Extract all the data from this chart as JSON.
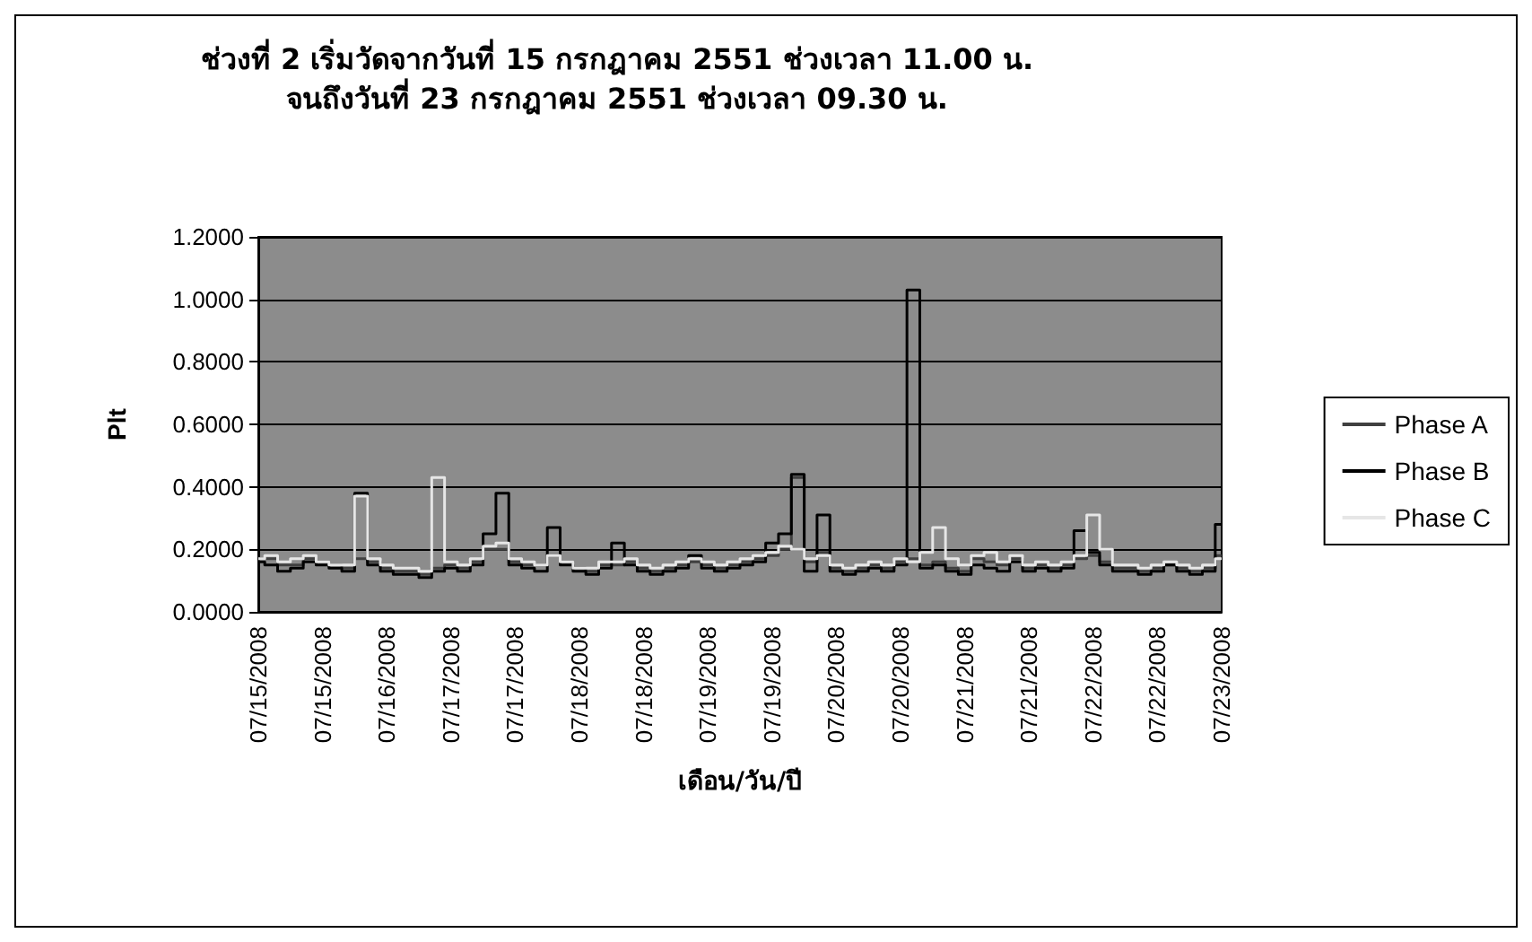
{
  "chart_data": {
    "type": "step",
    "title": "ช่วงที่ 2 เริ่มวัดจากวันที่ 15 กรกฎาคม 2551 ช่วงเวลา 11.00 น.\nจนถึงวันที่ 23 กรกฎาคม 2551 ช่วงเวลา 09.30 น.",
    "xlabel": "เดือน/วัน/ปี",
    "ylabel": "Plt",
    "categories": [
      "07/15/2008",
      null,
      null,
      null,
      null,
      "07/15/2008",
      null,
      null,
      null,
      null,
      "07/16/2008",
      null,
      null,
      null,
      null,
      "07/17/2008",
      null,
      null,
      null,
      null,
      "07/17/2008",
      null,
      null,
      null,
      null,
      "07/18/2008",
      null,
      null,
      null,
      null,
      "07/18/2008",
      null,
      null,
      null,
      null,
      "07/19/2008",
      null,
      null,
      null,
      null,
      "07/19/2008",
      null,
      null,
      null,
      null,
      "07/20/2008",
      null,
      null,
      null,
      null,
      "07/20/2008",
      null,
      null,
      null,
      null,
      "07/21/2008",
      null,
      null,
      null,
      null,
      "07/21/2008",
      null,
      null,
      null,
      null,
      "07/22/2008",
      null,
      null,
      null,
      null,
      "07/22/2008",
      null,
      null,
      null,
      null,
      "07/23/2008"
    ],
    "series": [
      {
        "name": "Phase A",
        "color": "#404040",
        "values": [
          0.17,
          0.17,
          0.15,
          0.15,
          0.17,
          0.16,
          0.15,
          0.14,
          0.17,
          0.16,
          0.14,
          0.13,
          0.13,
          0.12,
          0.14,
          0.15,
          0.14,
          0.16,
          0.2,
          0.2,
          0.16,
          0.15,
          0.15,
          0.18,
          0.16,
          0.14,
          0.13,
          0.15,
          0.15,
          0.16,
          0.14,
          0.13,
          0.14,
          0.15,
          0.16,
          0.15,
          0.14,
          0.15,
          0.16,
          0.17,
          0.18,
          0.2,
          0.43,
          0.16,
          0.19,
          0.14,
          0.13,
          0.14,
          0.15,
          0.14,
          0.16,
          0.17,
          0.15,
          0.16,
          0.14,
          0.13,
          0.17,
          0.16,
          0.15,
          0.17,
          0.14,
          0.15,
          0.14,
          0.15,
          0.17,
          0.18,
          0.16,
          0.14,
          0.14,
          0.13,
          0.14,
          0.15,
          0.14,
          0.13,
          0.14,
          0.18
        ]
      },
      {
        "name": "Phase B",
        "color": "#000000",
        "values": [
          0.16,
          0.15,
          0.13,
          0.14,
          0.16,
          0.15,
          0.14,
          0.13,
          0.38,
          0.15,
          0.13,
          0.12,
          0.12,
          0.11,
          0.13,
          0.14,
          0.13,
          0.15,
          0.25,
          0.38,
          0.15,
          0.14,
          0.13,
          0.27,
          0.15,
          0.13,
          0.12,
          0.14,
          0.22,
          0.15,
          0.13,
          0.12,
          0.13,
          0.14,
          0.18,
          0.14,
          0.13,
          0.14,
          0.15,
          0.16,
          0.22,
          0.25,
          0.44,
          0.13,
          0.31,
          0.13,
          0.12,
          0.13,
          0.14,
          0.13,
          0.15,
          1.03,
          0.14,
          0.15,
          0.13,
          0.12,
          0.15,
          0.14,
          0.13,
          0.16,
          0.13,
          0.14,
          0.13,
          0.14,
          0.26,
          0.19,
          0.15,
          0.13,
          0.13,
          0.12,
          0.13,
          0.15,
          0.13,
          0.12,
          0.13,
          0.28
        ]
      },
      {
        "name": "Phase C",
        "color": "#e6e6e6",
        "values": [
          0.17,
          0.18,
          0.16,
          0.17,
          0.18,
          0.16,
          0.15,
          0.15,
          0.37,
          0.17,
          0.15,
          0.14,
          0.14,
          0.13,
          0.43,
          0.16,
          0.15,
          0.17,
          0.21,
          0.22,
          0.17,
          0.16,
          0.15,
          0.18,
          0.16,
          0.14,
          0.14,
          0.16,
          0.16,
          0.17,
          0.15,
          0.14,
          0.15,
          0.16,
          0.17,
          0.16,
          0.15,
          0.16,
          0.17,
          0.18,
          0.19,
          0.21,
          0.2,
          0.17,
          0.18,
          0.15,
          0.14,
          0.15,
          0.16,
          0.15,
          0.17,
          0.16,
          0.19,
          0.27,
          0.17,
          0.15,
          0.18,
          0.19,
          0.16,
          0.18,
          0.15,
          0.16,
          0.15,
          0.16,
          0.18,
          0.31,
          0.2,
          0.15,
          0.15,
          0.14,
          0.15,
          0.16,
          0.15,
          0.14,
          0.15,
          0.17
        ]
      }
    ],
    "ylim": [
      0,
      1.2
    ],
    "yticks": [
      {
        "value": 0,
        "label": "0.0000"
      },
      {
        "value": 0.2,
        "label": "0.2000"
      },
      {
        "value": 0.4,
        "label": "0.4000"
      },
      {
        "value": 0.6,
        "label": "0.6000"
      },
      {
        "value": 0.8,
        "label": "0.8000"
      },
      {
        "value": 1,
        "label": "1.0000"
      },
      {
        "value": 1.2,
        "label": "1.2000"
      }
    ],
    "grid": "y",
    "legend": "right",
    "marker": "none",
    "line_style": "solid"
  }
}
